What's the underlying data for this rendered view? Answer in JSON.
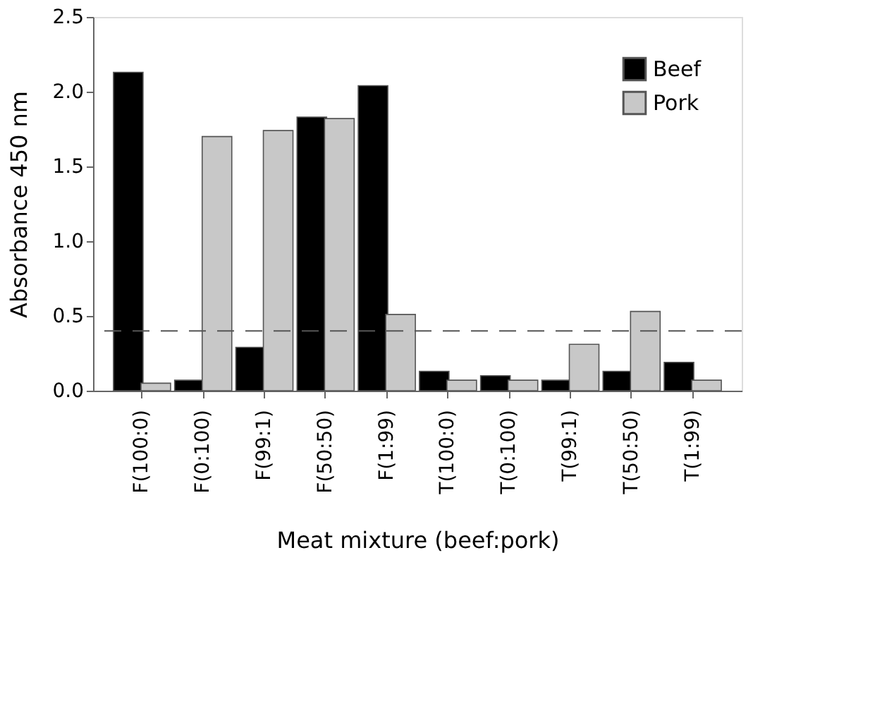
{
  "chart_data": {
    "type": "bar",
    "xlabel": "Meat mixture (beef:pork)",
    "ylabel": "Absorbance 450 nm",
    "categories": [
      "F(100:0)",
      "F(0:100)",
      "F(99:1)",
      "F(50:50)",
      "F(1:99)",
      "T(100:0)",
      "T(0:100)",
      "T(99:1)",
      "T(50:50)",
      "T(1:99)"
    ],
    "series": [
      {
        "name": "Beef",
        "color": "#000000",
        "values": [
          2.13,
          0.07,
          0.29,
          1.83,
          2.04,
          0.13,
          0.1,
          0.07,
          0.13,
          0.19
        ]
      },
      {
        "name": "Pork",
        "color": "#c8c8c8",
        "values": [
          0.05,
          1.7,
          1.74,
          1.82,
          0.51,
          0.07,
          0.07,
          0.31,
          0.53,
          0.07
        ]
      }
    ],
    "ylim": [
      0,
      2.5
    ],
    "yticks": [
      {
        "value": 0,
        "label": "0.0"
      },
      {
        "value": 0.5,
        "label": "0.5"
      },
      {
        "value": 1,
        "label": "1.0"
      },
      {
        "value": 1.5,
        "label": "1.5"
      },
      {
        "value": 2,
        "label": "2.0"
      },
      {
        "value": 2.5,
        "label": "2.5"
      }
    ],
    "ref_lines": [
      {
        "axis": "y",
        "value": 0.4,
        "color": "#555555",
        "line_style": "dashed"
      }
    ],
    "grid": false,
    "legend": "top right"
  }
}
